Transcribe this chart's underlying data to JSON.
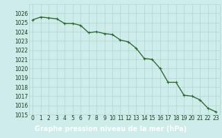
{
  "x": [
    0,
    1,
    2,
    3,
    4,
    5,
    6,
    7,
    8,
    9,
    10,
    11,
    12,
    13,
    14,
    15,
    16,
    17,
    18,
    19,
    20,
    21,
    22,
    23
  ],
  "y": [
    1025.3,
    1025.6,
    1025.5,
    1025.4,
    1024.9,
    1024.9,
    1024.7,
    1023.9,
    1024.0,
    1023.8,
    1023.7,
    1023.1,
    1022.9,
    1022.2,
    1021.1,
    1021.0,
    1020.0,
    1018.5,
    1018.5,
    1017.1,
    1017.0,
    1016.6,
    1015.7,
    1015.3
  ],
  "ylim": [
    1015,
    1027
  ],
  "yticks": [
    1015,
    1016,
    1017,
    1018,
    1019,
    1020,
    1021,
    1022,
    1023,
    1024,
    1025,
    1026
  ],
  "xticks": [
    0,
    1,
    2,
    3,
    4,
    5,
    6,
    7,
    8,
    9,
    10,
    11,
    12,
    13,
    14,
    15,
    16,
    17,
    18,
    19,
    20,
    21,
    22,
    23
  ],
  "xlabel": "Graphe pression niveau de la mer (hPa)",
  "line_color": "#2d6a2d",
  "marker": "+",
  "marker_size": 3,
  "bg_color": "#ceecea",
  "grid_color": "#aed4d0",
  "xlabel_bg": "#3a8a3a",
  "tick_label_color": "#1a3a1a",
  "line_width": 1.0,
  "tick_fontsize": 5.5,
  "xlabel_fontsize": 7
}
